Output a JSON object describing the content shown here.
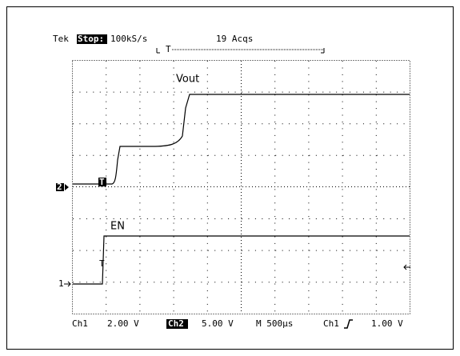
{
  "header": {
    "brand": "Tek",
    "state": "Stop:",
    "rate": "100kS/s",
    "acqs": "19 Acqs",
    "trigger_marker": "T"
  },
  "traces": [
    {
      "label": "Vout",
      "marker": "2"
    },
    {
      "label": "EN",
      "marker": "1"
    }
  ],
  "footer": {
    "ch1": "Ch1",
    "ch1_scale": "2.00 V",
    "ch2": "Ch2",
    "ch2_scale": "5.00 V",
    "timebase": "M 500µs",
    "trigger_source": "Ch1",
    "trigger_level": "1.00 V"
  }
}
